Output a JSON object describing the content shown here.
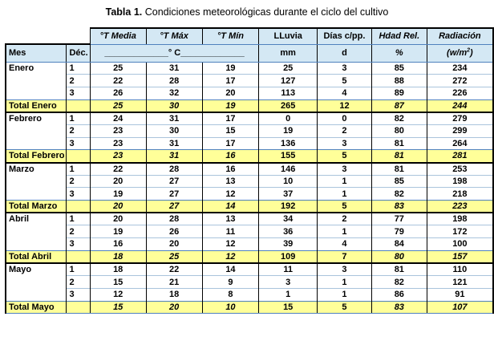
{
  "title": {
    "prefix": "Tabla 1.",
    "text": " Condiciones meteorológicas durante el ciclo del cultivo"
  },
  "table": {
    "header": {
      "mes": "Mes",
      "dec": "Déc.",
      "temp_media": "°T Media",
      "temp_max": "°T Máx",
      "temp_min": "°T Mín",
      "lluvia": "LLuvia",
      "dias_cpp": "Días c/pp.",
      "hdad_rel": "Hdad Rel.",
      "radiacion": "Radiación",
      "temp_unit": "_____________° C_____________",
      "lluvia_unit": "mm",
      "dias_unit": "d",
      "hdad_unit": "%",
      "radiacion_unit_base": "(w/m",
      "radiacion_unit_sup": "2",
      "radiacion_unit_close": ")"
    },
    "months": [
      {
        "name": "Enero",
        "rows": [
          {
            "dec": "1",
            "values": [
              "25",
              "31",
              "19",
              "25",
              "3",
              "85",
              "234"
            ]
          },
          {
            "dec": "2",
            "values": [
              "22",
              "28",
              "17",
              "127",
              "5",
              "88",
              "272"
            ]
          },
          {
            "dec": "3",
            "values": [
              "26",
              "32",
              "20",
              "113",
              "4",
              "89",
              "226"
            ]
          }
        ],
        "total": {
          "label": "Total Enero",
          "values": [
            "25",
            "30",
            "19",
            "265",
            "12",
            "87",
            "244"
          ]
        }
      },
      {
        "name": "Febrero",
        "rows": [
          {
            "dec": "1",
            "values": [
              "24",
              "31",
              "17",
              "0",
              "0",
              "82",
              "279"
            ]
          },
          {
            "dec": "2",
            "values": [
              "23",
              "30",
              "15",
              "19",
              "2",
              "80",
              "299"
            ]
          },
          {
            "dec": "3",
            "values": [
              "23",
              "31",
              "17",
              "136",
              "3",
              "81",
              "264"
            ]
          }
        ],
        "total": {
          "label": "Total Febrero",
          "values": [
            "23",
            "31",
            "16",
            "155",
            "5",
            "81",
            "281"
          ]
        }
      },
      {
        "name": "Marzo",
        "rows": [
          {
            "dec": "1",
            "values": [
              "22",
              "28",
              "16",
              "146",
              "3",
              "81",
              "253"
            ]
          },
          {
            "dec": "2",
            "values": [
              "20",
              "27",
              "13",
              "10",
              "1",
              "85",
              "198"
            ]
          },
          {
            "dec": "3",
            "values": [
              "19",
              "27",
              "12",
              "37",
              "1",
              "82",
              "218"
            ]
          }
        ],
        "total": {
          "label": "Total Marzo",
          "values": [
            "20",
            "27",
            "14",
            "192",
            "5",
            "83",
            "223"
          ]
        }
      },
      {
        "name": "Abril",
        "rows": [
          {
            "dec": "1",
            "values": [
              "20",
              "28",
              "13",
              "34",
              "2",
              "77",
              "198"
            ]
          },
          {
            "dec": "2",
            "values": [
              "19",
              "26",
              "11",
              "36",
              "1",
              "79",
              "172"
            ]
          },
          {
            "dec": "3",
            "values": [
              "16",
              "20",
              "12",
              "39",
              "4",
              "84",
              "100"
            ]
          }
        ],
        "total": {
          "label": "Total Abril",
          "values": [
            "18",
            "25",
            "12",
            "109",
            "7",
            "80",
            "157"
          ]
        }
      },
      {
        "name": "Mayo",
        "rows": [
          {
            "dec": "1",
            "values": [
              "18",
              "22",
              "14",
              "11",
              "3",
              "81",
              "110"
            ]
          },
          {
            "dec": "2",
            "values": [
              "15",
              "21",
              "9",
              "3",
              "1",
              "82",
              "121"
            ]
          },
          {
            "dec": "3",
            "values": [
              "12",
              "18",
              "8",
              "1",
              "1",
              "86",
              "91"
            ]
          }
        ],
        "total": {
          "label": "Total Mayo",
          "values": [
            "15",
            "20",
            "10",
            "15",
            "5",
            "83",
            "107"
          ]
        }
      }
    ]
  },
  "chart_data": {
    "type": "table",
    "title": "Tabla 1. Condiciones meteorológicas durante el ciclo del cultivo",
    "columns": [
      "Mes",
      "Déc.",
      "°T Media (°C)",
      "°T Máx (°C)",
      "°T Mín (°C)",
      "LLuvia (mm)",
      "Días c/pp. (d)",
      "Hdad Rel. (%)",
      "Radiación (w/m2)"
    ],
    "rows": [
      [
        "Enero",
        "1",
        25,
        31,
        19,
        25,
        3,
        85,
        234
      ],
      [
        "Enero",
        "2",
        22,
        28,
        17,
        127,
        5,
        88,
        272
      ],
      [
        "Enero",
        "3",
        26,
        32,
        20,
        113,
        4,
        89,
        226
      ],
      [
        "Total Enero",
        "",
        25,
        30,
        19,
        265,
        12,
        87,
        244
      ],
      [
        "Febrero",
        "1",
        24,
        31,
        17,
        0,
        0,
        82,
        279
      ],
      [
        "Febrero",
        "2",
        23,
        30,
        15,
        19,
        2,
        80,
        299
      ],
      [
        "Febrero",
        "3",
        23,
        31,
        17,
        136,
        3,
        81,
        264
      ],
      [
        "Total Febrero",
        "",
        23,
        31,
        16,
        155,
        5,
        81,
        281
      ],
      [
        "Marzo",
        "1",
        22,
        28,
        16,
        146,
        3,
        81,
        253
      ],
      [
        "Marzo",
        "2",
        20,
        27,
        13,
        10,
        1,
        85,
        198
      ],
      [
        "Marzo",
        "3",
        19,
        27,
        12,
        37,
        1,
        82,
        218
      ],
      [
        "Total Marzo",
        "",
        20,
        27,
        14,
        192,
        5,
        83,
        223
      ],
      [
        "Abril",
        "1",
        20,
        28,
        13,
        34,
        2,
        77,
        198
      ],
      [
        "Abril",
        "2",
        19,
        26,
        11,
        36,
        1,
        79,
        172
      ],
      [
        "Abril",
        "3",
        16,
        20,
        12,
        39,
        4,
        84,
        100
      ],
      [
        "Total Abril",
        "",
        18,
        25,
        12,
        109,
        7,
        80,
        157
      ],
      [
        "Mayo",
        "1",
        18,
        22,
        14,
        11,
        3,
        81,
        110
      ],
      [
        "Mayo",
        "2",
        15,
        21,
        9,
        3,
        1,
        82,
        121
      ],
      [
        "Mayo",
        "3",
        12,
        18,
        8,
        1,
        1,
        86,
        91
      ],
      [
        "Total Mayo",
        "",
        15,
        20,
        10,
        15,
        5,
        83,
        107
      ]
    ]
  },
  "colors": {
    "header_bg": "#d4e8f4",
    "total_bg": "#ffff99",
    "accent_line": "#4f81bd",
    "row_line": "#aac4dc",
    "grid_border": "#000000"
  }
}
